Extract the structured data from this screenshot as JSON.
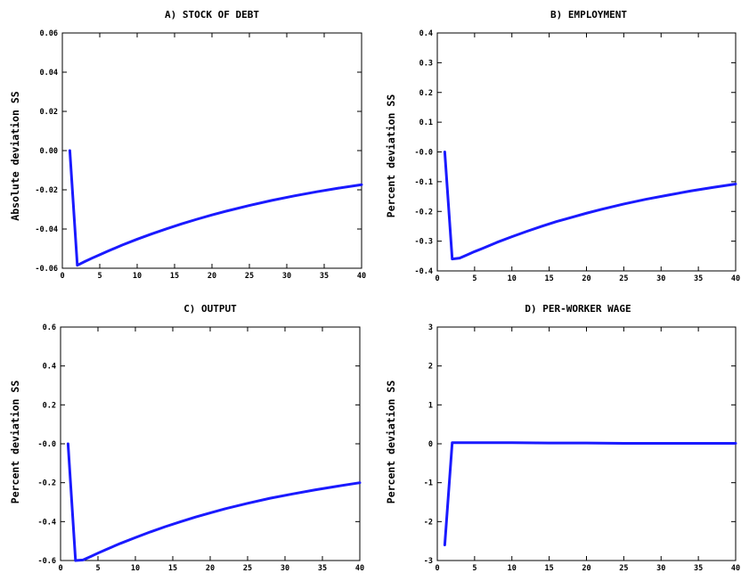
{
  "style": {
    "line_color": "#1a1aff",
    "frame_color": "#000000",
    "background": "#ffffff"
  },
  "chart_data": [
    {
      "type": "line",
      "title": "A) STOCK OF DEBT",
      "xlabel": "",
      "ylabel": "Absolute deviation SS",
      "xlim": [
        0,
        40
      ],
      "ylim": [
        -0.06,
        0.06
      ],
      "xticks": [
        0,
        5,
        10,
        15,
        20,
        25,
        30,
        35,
        40
      ],
      "yticks": [
        -0.06,
        -0.04,
        -0.02,
        0.0,
        0.02,
        0.04,
        0.06
      ],
      "yticklabels": [
        "-0.06",
        "-0.04",
        "-0.02",
        "0.00",
        "0.02",
        "0.04",
        "0.06"
      ],
      "grid": false,
      "series": [
        {
          "x": [
            1,
            2,
            3,
            4,
            5,
            6,
            8,
            10,
            12,
            14,
            16,
            18,
            20,
            22,
            25,
            28,
            31,
            34,
            37,
            40
          ],
          "y": [
            0.0,
            -0.0585,
            -0.0566,
            -0.0548,
            -0.0531,
            -0.0514,
            -0.0482,
            -0.0452,
            -0.0424,
            -0.0398,
            -0.0373,
            -0.035,
            -0.0328,
            -0.0308,
            -0.028,
            -0.0254,
            -0.0231,
            -0.021,
            -0.0191,
            -0.0174
          ]
        }
      ]
    },
    {
      "type": "line",
      "title": "B) EMPLOYMENT",
      "xlabel": "",
      "ylabel": "Percent deviation SS",
      "xlim": [
        0,
        40
      ],
      "ylim": [
        -0.4,
        0.4
      ],
      "xticks": [
        0,
        5,
        10,
        15,
        20,
        25,
        30,
        35,
        40
      ],
      "yticks": [
        -0.4,
        -0.3,
        -0.2,
        -0.1,
        0.0,
        0.1,
        0.2,
        0.3,
        0.4
      ],
      "yticklabels": [
        "-0.4",
        "-0.3",
        "-0.2",
        "-0.1",
        "-0.0",
        "0.1",
        "0.2",
        "0.3",
        "0.4"
      ],
      "grid": false,
      "series": [
        {
          "x": [
            1,
            2,
            3,
            4,
            5,
            6,
            8,
            10,
            12,
            14,
            16,
            18,
            20,
            22,
            25,
            28,
            31,
            34,
            37,
            40
          ],
          "y": [
            0.0,
            -0.36,
            -0.357,
            -0.346,
            -0.335,
            -0.325,
            -0.304,
            -0.285,
            -0.267,
            -0.25,
            -0.234,
            -0.22,
            -0.206,
            -0.193,
            -0.175,
            -0.159,
            -0.145,
            -0.131,
            -0.119,
            -0.108
          ]
        }
      ]
    },
    {
      "type": "line",
      "title": "C) OUTPUT",
      "xlabel": "",
      "ylabel": "Percent deviation SS",
      "xlim": [
        0,
        40
      ],
      "ylim": [
        -0.6,
        0.6
      ],
      "xticks": [
        0,
        5,
        10,
        15,
        20,
        25,
        30,
        35,
        40
      ],
      "yticks": [
        -0.6,
        -0.4,
        -0.2,
        0.0,
        0.2,
        0.4,
        0.6
      ],
      "yticklabels": [
        "-0.6",
        "-0.4",
        "-0.2",
        "-0.0",
        "0.2",
        "0.4",
        "0.6"
      ],
      "grid": false,
      "series": [
        {
          "x": [
            1,
            2,
            3,
            4,
            5,
            6,
            8,
            10,
            12,
            14,
            16,
            18,
            20,
            22,
            25,
            28,
            31,
            34,
            37,
            40
          ],
          "y": [
            0.0,
            -0.6,
            -0.597,
            -0.58,
            -0.562,
            -0.545,
            -0.512,
            -0.482,
            -0.453,
            -0.426,
            -0.401,
            -0.377,
            -0.355,
            -0.334,
            -0.306,
            -0.28,
            -0.258,
            -0.237,
            -0.218,
            -0.2
          ]
        }
      ]
    },
    {
      "type": "line",
      "title": "D) PER-WORKER WAGE",
      "xlabel": "",
      "ylabel": "Percent deviation SS",
      "xlim": [
        0,
        40
      ],
      "ylim": [
        -3,
        3
      ],
      "xticks": [
        0,
        5,
        10,
        15,
        20,
        25,
        30,
        35,
        40
      ],
      "yticks": [
        -3,
        -2,
        -1,
        0,
        1,
        2,
        3
      ],
      "yticklabels": [
        "-3",
        "-2",
        "-1",
        "0",
        "1",
        "2",
        "3"
      ],
      "grid": false,
      "series": [
        {
          "x": [
            1,
            2,
            3,
            5,
            10,
            15,
            20,
            25,
            30,
            35,
            40
          ],
          "y": [
            -2.6,
            0.03,
            0.03,
            0.03,
            0.03,
            0.02,
            0.02,
            0.01,
            0.01,
            0.01,
            0.01
          ]
        }
      ]
    }
  ]
}
